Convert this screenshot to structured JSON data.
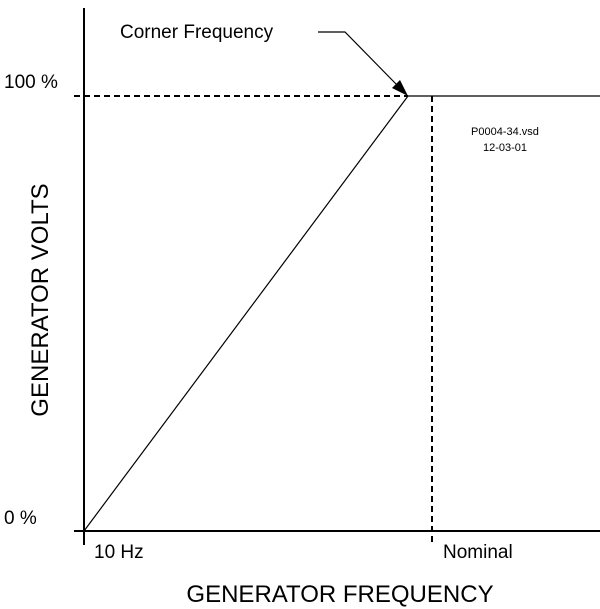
{
  "diagram": {
    "y_axis_label": "GENERATOR VOLTS",
    "x_axis_label": "GENERATOR FREQUENCY",
    "y_labels": [
      "100 %",
      "0 %"
    ],
    "x_labels": [
      "10 Hz",
      "Nominal"
    ],
    "annotation": "Corner Frequency",
    "file_note": [
      "P0004-34.vsd",
      "12-03-01"
    ]
  }
}
